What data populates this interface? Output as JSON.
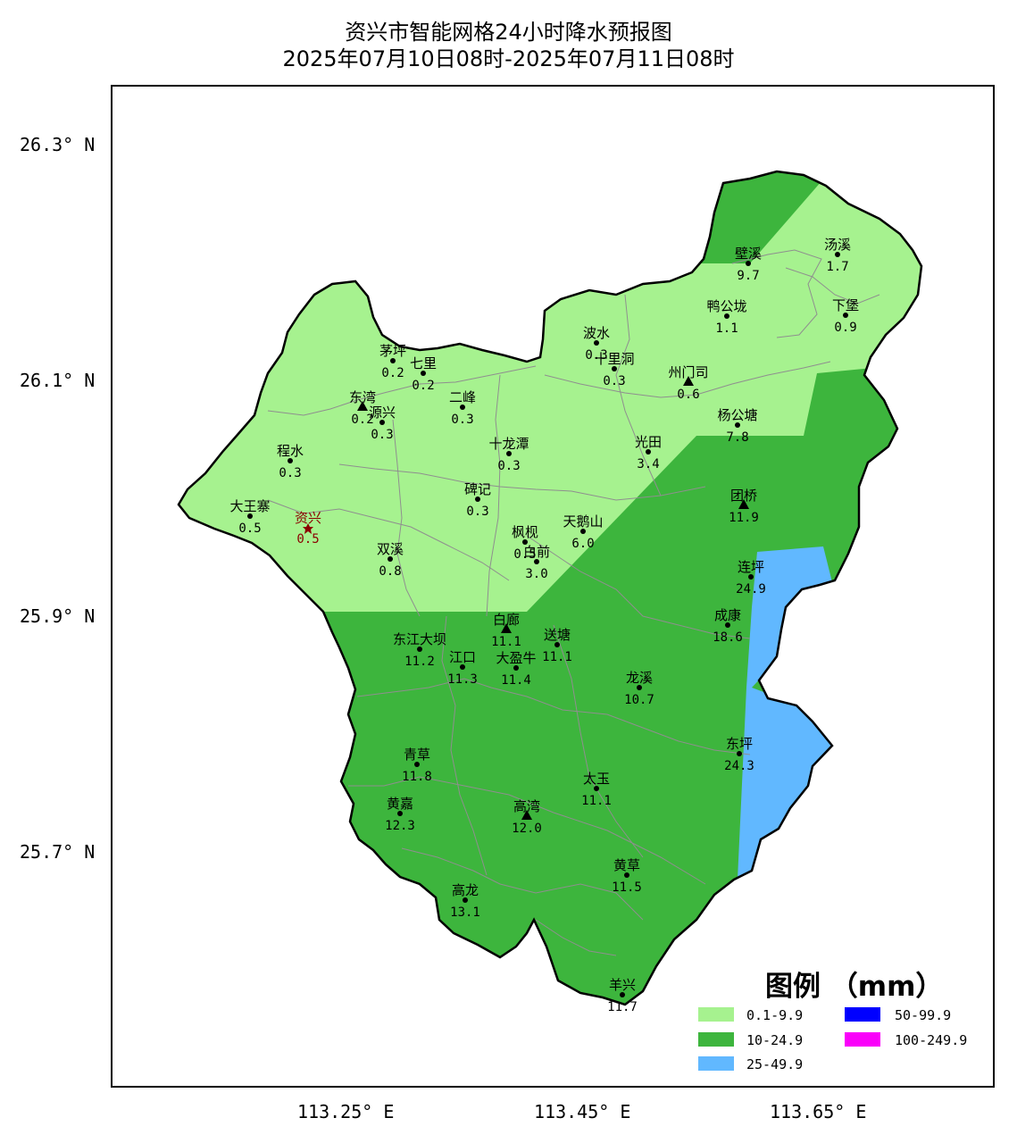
{
  "title": {
    "line1": "资兴市智能网格24小时降水预报图",
    "line2": "2025年07月10日08时-2025年07月11日08时"
  },
  "axes": {
    "lat_labels": [
      "26.3° N",
      "26.1° N",
      "25.9° N",
      "25.7° N"
    ],
    "lon_labels": [
      "113.25° E",
      "113.45° E",
      "113.65° E"
    ]
  },
  "colors": {
    "c1": "#a6f28f",
    "c2": "#3db53d",
    "c3": "#61b8ff",
    "c4": "#0000ff",
    "c5": "#fa00fa",
    "city": "#8b0000"
  },
  "legend": {
    "title": "图例 （mm）",
    "items": [
      {
        "label": "0.1-9.9",
        "color": "#a6f28f"
      },
      {
        "label": "10-24.9",
        "color": "#3db53d"
      },
      {
        "label": "25-49.9",
        "color": "#61b8ff"
      },
      {
        "label": "50-99.9",
        "color": "#0000ff"
      },
      {
        "label": "100-249.9",
        "color": "#fa00fa"
      }
    ]
  },
  "stations": [
    {
      "name": "壁溪",
      "value": "9.7"
    },
    {
      "name": "汤溪",
      "value": "1.7"
    },
    {
      "name": "鸭公垅",
      "value": "1.1"
    },
    {
      "name": "下堡",
      "value": "0.9"
    },
    {
      "name": "波水",
      "value": "0.3"
    },
    {
      "name": "十里洞",
      "value": "0.3"
    },
    {
      "name": "州门司",
      "value": "0.6"
    },
    {
      "name": "茅坪",
      "value": "0.2"
    },
    {
      "name": "七里",
      "value": "0.2"
    },
    {
      "name": "二峰",
      "value": "0.3"
    },
    {
      "name": "东湾",
      "value": "0.2"
    },
    {
      "name": "源兴",
      "value": "0.3"
    },
    {
      "name": "杨公塘",
      "value": "7.8"
    },
    {
      "name": "程水",
      "value": "0.3"
    },
    {
      "name": "十龙潭",
      "value": "0.3"
    },
    {
      "name": "光田",
      "value": "3.4"
    },
    {
      "name": "碑记",
      "value": "0.3"
    },
    {
      "name": "团桥",
      "value": "11.9"
    },
    {
      "name": "大王寨",
      "value": "0.5"
    },
    {
      "name": "资兴",
      "value": "0.5"
    },
    {
      "name": "天鹅山",
      "value": "6.0"
    },
    {
      "name": "枫枧",
      "value": "0.5"
    },
    {
      "name": "白前",
      "value": "3.0"
    },
    {
      "name": "双溪",
      "value": "0.8"
    },
    {
      "name": "连坪",
      "value": "24.9"
    },
    {
      "name": "成康",
      "value": "18.6"
    },
    {
      "name": "白廊",
      "value": "11.1"
    },
    {
      "name": "送塘",
      "value": "11.1"
    },
    {
      "name": "东江大坝",
      "value": "11.2"
    },
    {
      "name": "江口",
      "value": "11.3"
    },
    {
      "name": "大盈牛",
      "value": "11.4"
    },
    {
      "name": "龙溪",
      "value": "10.7"
    },
    {
      "name": "东坪",
      "value": "24.3"
    },
    {
      "name": "青草",
      "value": "11.8"
    },
    {
      "name": "太玉",
      "value": "11.1"
    },
    {
      "name": "黄嘉",
      "value": "12.3"
    },
    {
      "name": "高湾",
      "value": "12.0"
    },
    {
      "name": "黄草",
      "value": "11.5"
    },
    {
      "name": "高龙",
      "value": "13.1"
    },
    {
      "name": "羊兴",
      "value": "11.7"
    }
  ]
}
